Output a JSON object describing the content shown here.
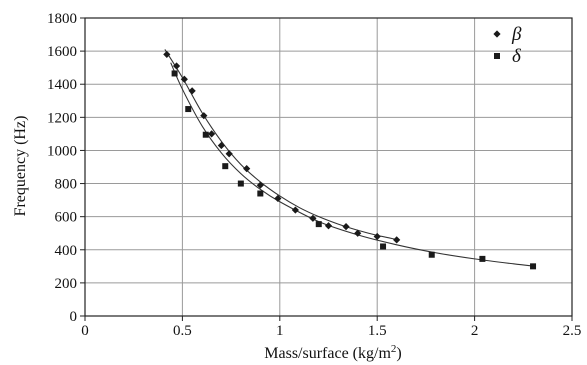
{
  "chart_data": {
    "type": "scatter",
    "title": "",
    "xlabel": "Mass/surface (kg/m",
    "xlabel_sup": "2",
    "xlabel_close": ")",
    "ylabel": "Frequency (Hz)",
    "xlim": [
      0,
      2.5
    ],
    "ylim": [
      0,
      1800
    ],
    "x_ticks": [
      0,
      0.5,
      1,
      1.5,
      2,
      2.5
    ],
    "x_tick_labels": [
      "0",
      "0.5",
      "1",
      "1.5",
      "2",
      "2.5"
    ],
    "y_ticks": [
      0,
      200,
      400,
      600,
      800,
      1000,
      1200,
      1400,
      1600,
      1800
    ],
    "y_tick_labels": [
      "0",
      "200",
      "400",
      "600",
      "800",
      "1000",
      "1200",
      "1400",
      "1600",
      "1800"
    ],
    "grid": true,
    "legend_position": "top-right",
    "series": [
      {
        "name": "β",
        "marker": "diamond",
        "color": "#1a1a1a",
        "points": [
          [
            0.42,
            1580
          ],
          [
            0.47,
            1510
          ],
          [
            0.51,
            1430
          ],
          [
            0.55,
            1360
          ],
          [
            0.61,
            1210
          ],
          [
            0.65,
            1100
          ],
          [
            0.7,
            1030
          ],
          [
            0.74,
            980
          ],
          [
            0.83,
            890
          ],
          [
            0.9,
            790
          ],
          [
            0.99,
            710
          ],
          [
            1.08,
            640
          ],
          [
            1.17,
            590
          ],
          [
            1.25,
            545
          ],
          [
            1.34,
            540
          ],
          [
            1.4,
            500
          ],
          [
            1.5,
            480
          ],
          [
            1.6,
            460
          ]
        ],
        "fit_curve": [
          [
            0.41,
            1610
          ],
          [
            0.5,
            1440
          ],
          [
            0.6,
            1230
          ],
          [
            0.7,
            1055
          ],
          [
            0.8,
            915
          ],
          [
            0.9,
            810
          ],
          [
            1.0,
            725
          ],
          [
            1.1,
            655
          ],
          [
            1.2,
            600
          ],
          [
            1.3,
            555
          ],
          [
            1.4,
            518
          ],
          [
            1.5,
            487
          ],
          [
            1.6,
            462
          ]
        ]
      },
      {
        "name": "δ",
        "marker": "square",
        "color": "#1a1a1a",
        "points": [
          [
            0.46,
            1465
          ],
          [
            0.53,
            1250
          ],
          [
            0.62,
            1095
          ],
          [
            0.72,
            905
          ],
          [
            0.8,
            800
          ],
          [
            0.9,
            740
          ],
          [
            1.2,
            555
          ],
          [
            1.53,
            420
          ],
          [
            1.78,
            370
          ],
          [
            2.04,
            345
          ],
          [
            2.3,
            300
          ]
        ],
        "fit_curve": [
          [
            0.44,
            1530
          ],
          [
            0.5,
            1370
          ],
          [
            0.6,
            1150
          ],
          [
            0.7,
            985
          ],
          [
            0.8,
            860
          ],
          [
            0.9,
            765
          ],
          [
            1.0,
            690
          ],
          [
            1.2,
            570
          ],
          [
            1.4,
            490
          ],
          [
            1.6,
            430
          ],
          [
            1.8,
            382
          ],
          [
            2.0,
            345
          ],
          [
            2.2,
            315
          ],
          [
            2.3,
            302
          ]
        ]
      }
    ]
  }
}
